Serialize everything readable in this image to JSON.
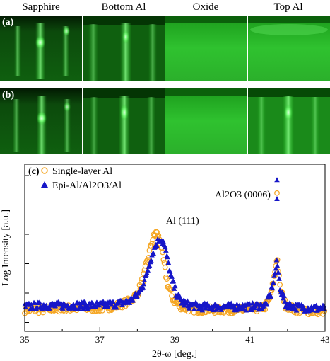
{
  "columns": [
    "Sapphire",
    "Bottom Al",
    "Oxide",
    "Top Al"
  ],
  "panels": {
    "a": "(a)",
    "b": "(b)",
    "c": "(c)"
  },
  "chart_data": {
    "type": "scatter",
    "xlabel": "2θ-ω [deg.]",
    "ylabel": "Log Intensity [a.u.]",
    "xlim": [
      35,
      43
    ],
    "x_ticks": [
      "35",
      "37",
      "39",
      "41",
      "43"
    ],
    "ylim": [
      0,
      1
    ],
    "yticks_labeled": false,
    "legend_position": "top-left",
    "annotations": [
      {
        "text": "Al (111)",
        "x": 38.65,
        "y": 0.66
      },
      {
        "text": "Al2O3 (0006)",
        "x": 41.7,
        "y": 0.87
      }
    ],
    "series": [
      {
        "name": "Single-layer Al",
        "marker": "open-circle",
        "color": "#f5a623",
        "x": [
          35.0,
          35.5,
          36.0,
          36.5,
          37.0,
          37.5,
          37.8,
          38.0,
          38.15,
          38.3,
          38.4,
          38.5,
          38.6,
          38.7,
          38.8,
          38.95,
          39.1,
          39.3,
          39.6,
          40.0,
          40.5,
          41.0,
          41.4,
          41.55,
          41.65,
          41.72,
          41.8,
          41.95,
          42.2,
          42.6,
          43.0,
          41.72
        ],
        "y": [
          0.07,
          0.07,
          0.08,
          0.08,
          0.08,
          0.1,
          0.13,
          0.18,
          0.28,
          0.44,
          0.55,
          0.6,
          0.55,
          0.4,
          0.25,
          0.14,
          0.1,
          0.08,
          0.07,
          0.07,
          0.07,
          0.07,
          0.09,
          0.16,
          0.3,
          0.44,
          0.22,
          0.1,
          0.07,
          0.06,
          0.06,
          0.87
        ]
      },
      {
        "name": "Epi-Al/Al2O3/Al",
        "marker": "filled-triangle",
        "color": "#1616c8",
        "x": [
          35.0,
          35.5,
          36.0,
          36.5,
          37.0,
          37.5,
          37.8,
          38.0,
          38.2,
          38.35,
          38.5,
          38.6,
          38.7,
          38.8,
          38.9,
          39.05,
          39.2,
          39.4,
          39.7,
          40.0,
          40.5,
          41.0,
          41.4,
          41.55,
          41.65,
          41.72,
          41.8,
          41.95,
          42.2,
          42.6,
          43.0,
          41.72,
          41.72
        ],
        "y": [
          0.09,
          0.1,
          0.1,
          0.1,
          0.1,
          0.11,
          0.13,
          0.17,
          0.27,
          0.42,
          0.52,
          0.56,
          0.53,
          0.42,
          0.29,
          0.17,
          0.12,
          0.1,
          0.09,
          0.09,
          0.09,
          0.09,
          0.1,
          0.17,
          0.3,
          0.4,
          0.22,
          0.11,
          0.09,
          0.08,
          0.08,
          0.83,
          0.96
        ]
      }
    ]
  }
}
